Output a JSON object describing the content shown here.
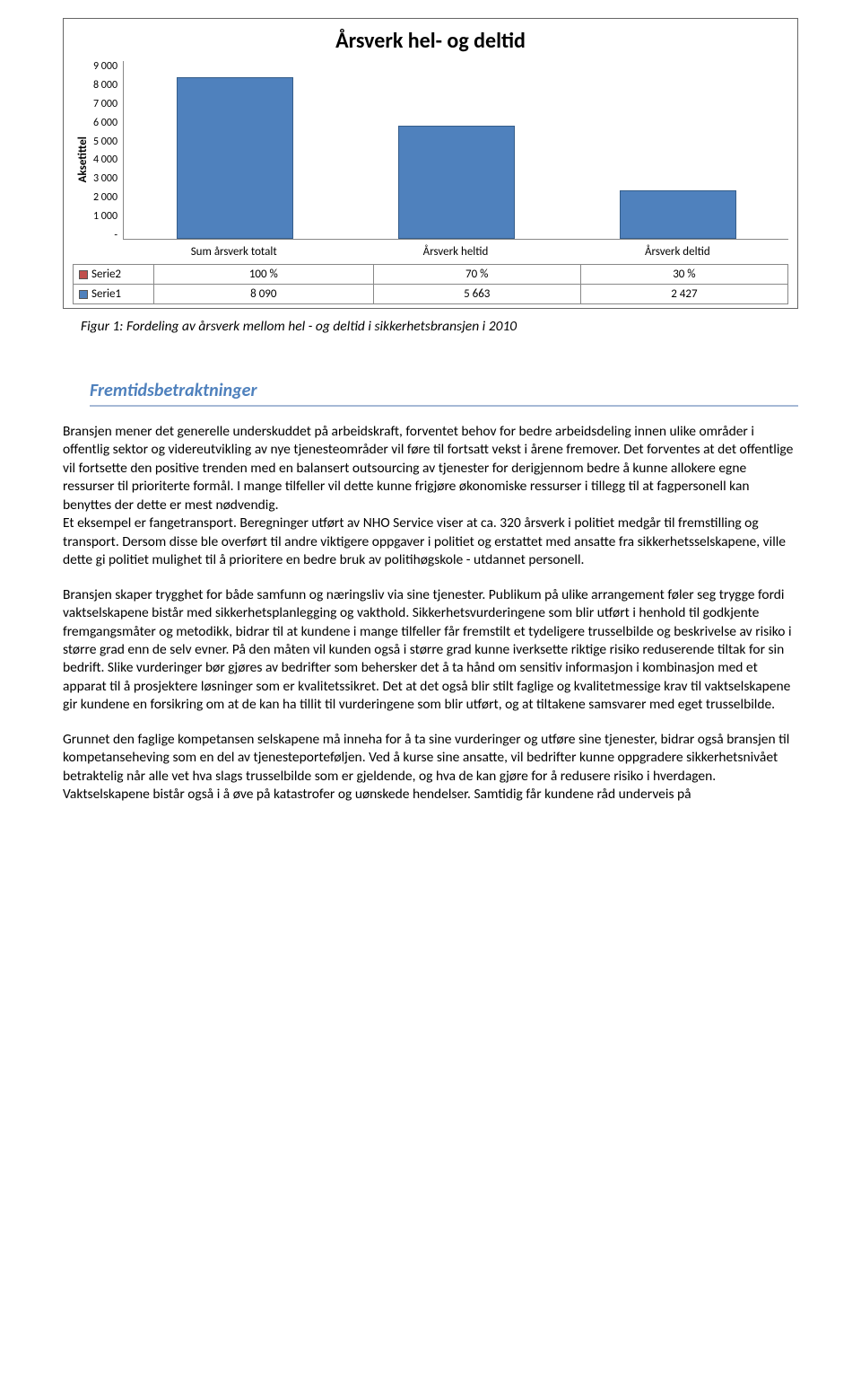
{
  "chart": {
    "title": "Årsverk hel- og deltid",
    "y_axis_label": "Aksetittel",
    "type": "bar",
    "ylim": [
      0,
      9000
    ],
    "ytick_step": 1000,
    "ytick_labels": [
      "9 000",
      "8 000",
      "7 000",
      "6 000",
      "5 000",
      "4 000",
      "3 000",
      "2 000",
      "1 000",
      "-"
    ],
    "categories": [
      "Sum årsverk totalt",
      "Årsverk heltid",
      "Årsverk deltid"
    ],
    "bars": [
      {
        "value": 8090,
        "color": "#4f81bd"
      },
      {
        "value": 5663,
        "color": "#4f81bd"
      },
      {
        "value": 2427,
        "color": "#4f81bd"
      }
    ],
    "series": [
      {
        "name": "Serie2",
        "swatch": "#c0504d",
        "row": [
          "100 %",
          "70 %",
          "30 %"
        ]
      },
      {
        "name": "Serie1",
        "swatch": "#4f81bd",
        "row": [
          "8 090",
          "5 663",
          "2 427"
        ]
      }
    ],
    "bar_border": "#355d8a",
    "plot_border": "#888888",
    "background": "#ffffff"
  },
  "caption": "Figur 1: Fordeling av årsverk mellom hel - og deltid i sikkerhetsbransjen i 2010",
  "section_heading": "Fremtidsbetraktninger",
  "paragraphs": [
    "Bransjen mener det generelle underskuddet på arbeidskraft, forventet behov for bedre arbeidsdeling innen ulike områder i offentlig sektor og videreutvikling av nye tjenesteområder vil føre til fortsatt vekst i årene fremover. Det forventes at det offentlige vil fortsette den positive trenden med en balansert outsourcing av tjenester for derigjennom bedre å kunne allokere egne ressurser til prioriterte formål. I mange tilfeller vil dette kunne frigjøre økonomiske ressurser i tillegg til at fagpersonell kan benyttes der dette er mest nødvendig.\nEt eksempel er fangetransport. Beregninger utført av NHO Service viser at ca. 320 årsverk i politiet medgår til fremstilling og transport. Dersom disse ble overført til andre viktigere oppgaver i politiet og erstattet med ansatte fra sikkerhetsselskapene, ville dette gi politiet mulighet til å prioritere en bedre bruk av politihøgskole - utdannet personell.",
    "Bransjen skaper trygghet for både samfunn og næringsliv via sine tjenester. Publikum på ulike arrangement føler seg trygge fordi vaktselskapene bistår med sikkerhetsplanlegging og vakthold. Sikkerhetsvurderingene som blir utført i henhold til godkjente fremgangsmåter og metodikk, bidrar til at kundene i mange tilfeller får fremstilt et tydeligere trusselbilde og beskrivelse av risiko i større grad enn de selv evner. På den måten vil kunden også i større grad kunne iverksette riktige risiko reduserende tiltak for sin bedrift.  Slike vurderinger bør gjøres av bedrifter som behersker det å ta hånd om sensitiv informasjon i kombinasjon med et apparat til å prosjektere løsninger som er kvalitetssikret. Det at det også blir stilt faglige og kvalitetmessige krav til vaktselskapene gir kundene en forsikring om at de kan ha tillit til vurderingene som blir utført, og at tiltakene samsvarer med eget trusselbilde.",
    "Grunnet den faglige kompetansen selskapene må inneha for å ta sine vurderinger og utføre sine tjenester, bidrar også bransjen til kompetanseheving som en del av tjenesteporteføljen. Ved å kurse sine ansatte, vil bedrifter kunne oppgradere sikkerhetsnivået betraktelig når alle vet hva slags trusselbilde som er gjeldende, og hva de kan gjøre for å redusere risiko i hverdagen. Vaktselskapene bistår også i å øve på katastrofer og uønskede hendelser. Samtidig får kundene råd underveis på"
  ]
}
